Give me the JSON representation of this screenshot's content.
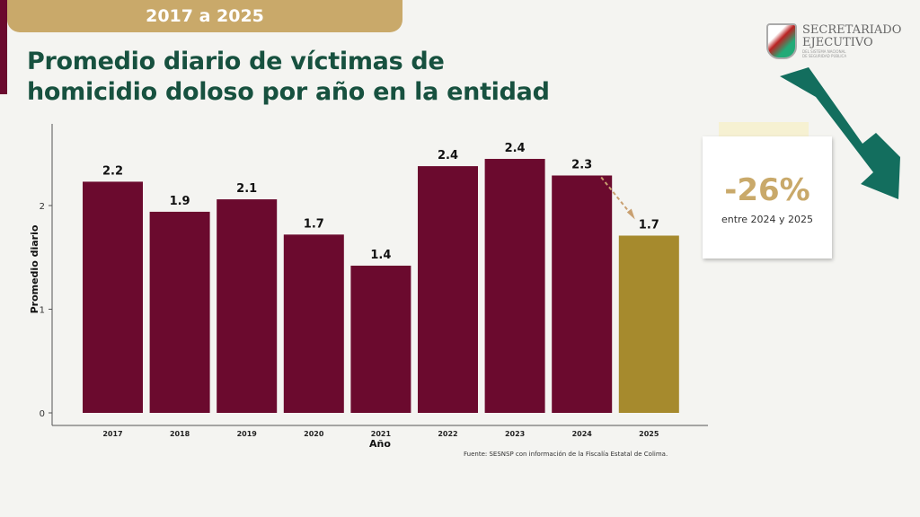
{
  "header": {
    "period": "2017 a 2025",
    "title_line1": "Promedio diario de víctimas de",
    "title_line2": "homicidio doloso por año en la entidad"
  },
  "logo": {
    "name1": "SECRETARIADO",
    "name2": "EJECUTIVO",
    "sub1": "DEL SISTEMA NACIONAL",
    "sub2": "DE SEGURIDAD PÚBLICA"
  },
  "callout": {
    "value": "-26%",
    "text": "entre 2024 y 2025"
  },
  "source": "Fuente: SESNSP con información de la Fiscalía Estatal de Colima.",
  "colors": {
    "bar": "#6b0a2e",
    "highlight": "#a68a2d",
    "title": "#17513f",
    "accent": "#c9a96a"
  },
  "chart_data": {
    "type": "bar",
    "xlabel": "Año",
    "ylabel": "Promedio diario",
    "ylim": [
      0,
      2.8
    ],
    "yticks": [
      0,
      1,
      2
    ],
    "grid": false,
    "categories": [
      "2017",
      "2018",
      "2019",
      "2020",
      "2021",
      "2022",
      "2023",
      "2024",
      "2025"
    ],
    "values": [
      2.23,
      1.94,
      2.06,
      1.72,
      1.42,
      2.38,
      2.45,
      2.29,
      1.71
    ],
    "labels": [
      "2.2",
      "1.9",
      "2.1",
      "1.7",
      "1.4",
      "2.4",
      "2.4",
      "2.3",
      "1.7"
    ],
    "highlight_index": 8
  }
}
